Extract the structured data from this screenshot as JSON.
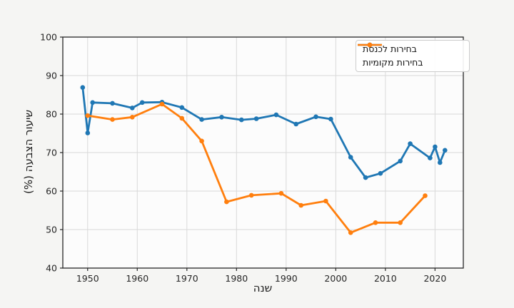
{
  "figure": {
    "background": "#f5f5f3",
    "plot_background": "#fcfcfc",
    "grid_color": "#d9d9d9",
    "spine_color": "#262626",
    "tick_text_color": "#262626"
  },
  "chart_data": {
    "type": "line",
    "title": "",
    "xlabel": "שנה",
    "ylabel": "שיעור הצבעה (%)",
    "xlim": [
      1945,
      2025.7
    ],
    "ylim": [
      40,
      100
    ],
    "xticks": [
      1950,
      1960,
      1970,
      1980,
      1990,
      2000,
      2010,
      2020
    ],
    "yticks": [
      40,
      50,
      60,
      70,
      80,
      90,
      100
    ],
    "grid": true,
    "legend_position": "upper right",
    "series": [
      {
        "name": "בחירות לכנסת",
        "color": "#1f77b4",
        "x": [
          1949,
          1950,
          1951,
          1955,
          1959,
          1961,
          1965,
          1969,
          1973,
          1977,
          1981,
          1984,
          1988,
          1992,
          1996,
          1999,
          2003,
          2006,
          2009,
          2013,
          2015,
          2019,
          2020,
          2021,
          2022
        ],
        "y": [
          86.9,
          75.1,
          83.0,
          82.8,
          81.6,
          83.0,
          83.1,
          81.7,
          78.6,
          79.2,
          78.5,
          78.8,
          79.8,
          77.4,
          79.3,
          78.7,
          68.8,
          63.5,
          64.6,
          67.8,
          72.3,
          68.6,
          71.5,
          67.4,
          70.6
        ]
      },
      {
        "name": "בחירות מקומיות",
        "color": "#ff7f0e",
        "x": [
          1950,
          1955,
          1959,
          1965,
          1969,
          1973,
          1978,
          1983,
          1989,
          1993,
          1998,
          2003,
          2008,
          2013,
          2018
        ],
        "y": [
          79.6,
          78.6,
          79.2,
          82.6,
          78.9,
          73.0,
          57.2,
          58.9,
          59.4,
          56.3,
          57.4,
          49.2,
          51.8,
          51.8,
          58.8
        ]
      }
    ]
  }
}
